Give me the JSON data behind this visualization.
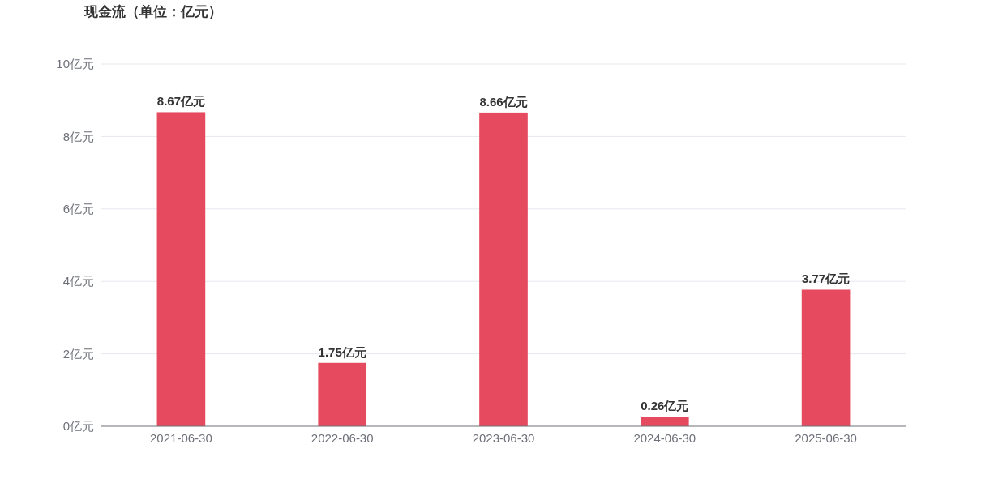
{
  "chart_data": {
    "type": "bar",
    "title": "现金流（单位：亿元）",
    "categories": [
      "2021-06-30",
      "2022-06-30",
      "2023-06-30",
      "2024-06-30",
      "2025-06-30"
    ],
    "values": [
      8.67,
      1.75,
      8.66,
      0.26,
      3.77
    ],
    "value_labels": [
      "8.67亿元",
      "1.75亿元",
      "8.66亿元",
      "0.26亿元",
      "3.77亿元"
    ],
    "color": "#e54a5e",
    "ylim": [
      0,
      10
    ],
    "yticks": [
      {
        "value": 0,
        "label": "0亿元"
      },
      {
        "value": 2,
        "label": "2亿元"
      },
      {
        "value": 4,
        "label": "4亿元"
      },
      {
        "value": 6,
        "label": "6亿元"
      },
      {
        "value": 8,
        "label": "8亿元"
      },
      {
        "value": 10,
        "label": "10亿元"
      }
    ],
    "grid": "y"
  }
}
